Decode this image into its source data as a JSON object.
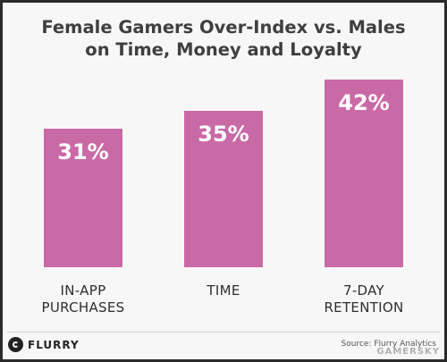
{
  "chart_data": {
    "type": "bar",
    "title_lines": [
      "Female Gamers Over-Index vs. Males",
      "on Time, Money and Loyalty"
    ],
    "categories": [
      "IN-APP PURCHASES",
      "TIME",
      "7-DAY RETENTION"
    ],
    "category_lines": [
      [
        "IN-APP",
        "PURCHASES"
      ],
      [
        "TIME"
      ],
      [
        "7-DAY",
        "RETENTION"
      ]
    ],
    "values": [
      31,
      35,
      42
    ],
    "value_labels": [
      "31%",
      "35%",
      "42%"
    ],
    "ylim": [
      0,
      50
    ],
    "grid": false,
    "legend": "none",
    "bar_color": "#c96aa6"
  },
  "footer": {
    "logo_text": "FLURRY",
    "source": "Source: Flurry Analytics",
    "watermark": "GAMERSKY"
  }
}
